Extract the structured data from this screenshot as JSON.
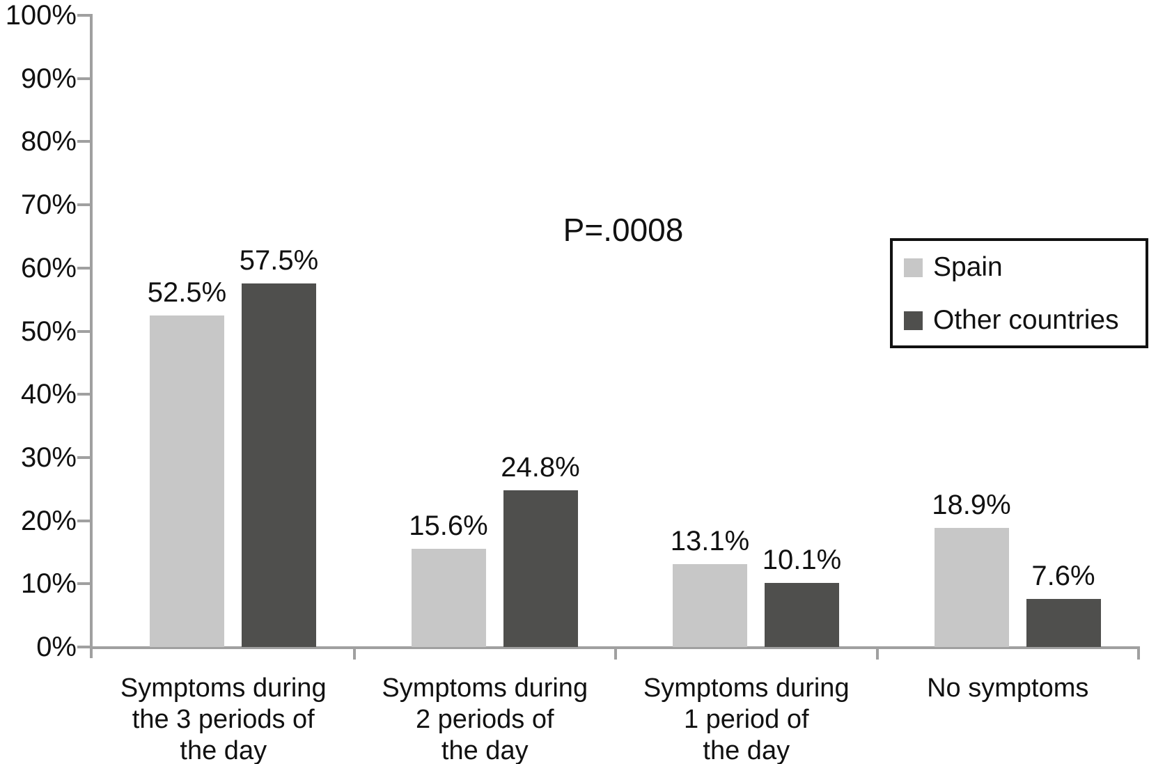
{
  "chart_data": {
    "type": "bar",
    "title": "",
    "annotation": "P=.0008",
    "categories": [
      [
        "Symptoms during",
        "the 3 periods of",
        "the day"
      ],
      [
        "Symptoms during",
        "2 periods of",
        "the day"
      ],
      [
        "Symptoms during",
        "1 period of",
        "the day"
      ],
      [
        "No symptoms"
      ]
    ],
    "series": [
      {
        "name": "Spain",
        "color": "#c7c7c7",
        "values": [
          52.5,
          15.6,
          13.1,
          18.9
        ],
        "value_labels": [
          "52.5%",
          "15.6%",
          "13.1%",
          "18.9%"
        ]
      },
      {
        "name": "Other countries",
        "color": "#4f4f4d",
        "values": [
          57.5,
          24.8,
          10.1,
          7.6
        ],
        "value_labels": [
          "57.5%",
          "24.8%",
          "10.1%",
          "7.6%"
        ]
      }
    ],
    "y_axis": {
      "min": 0,
      "max": 100,
      "tick_step": 10,
      "tick_labels": [
        "0%",
        "10%",
        "20%",
        "30%",
        "40%",
        "50%",
        "60%",
        "70%",
        "80%",
        "90%",
        "100%"
      ]
    },
    "legend": {
      "position": "top-right",
      "items": [
        "Spain",
        "Other countries"
      ]
    },
    "grid": false,
    "colors": {
      "axis": "#a0a0a0",
      "text": "#111111",
      "background": "#ffffff"
    }
  }
}
